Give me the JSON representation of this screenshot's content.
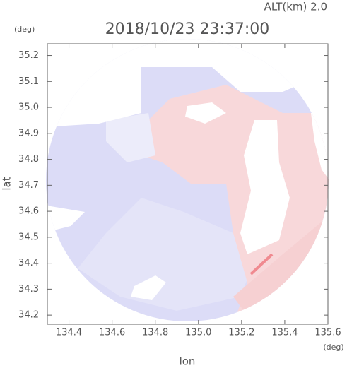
{
  "chart_data": {
    "type": "radar-map",
    "title": "2018/10/23 23:37:00",
    "annotation": "ALT(km) 2.0",
    "xlabel": "lon",
    "ylabel": "lat",
    "xunit": "(deg)",
    "yunit": "(deg)",
    "xlim": [
      134.3,
      135.6
    ],
    "ylim": [
      34.165,
      35.245
    ],
    "xticks": [
      134.4,
      134.6,
      134.8,
      {
        "value": 135,
        "label": "135.0"
      },
      135.2,
      135.4,
      135.6
    ],
    "yticks": [
      34.2,
      34.3,
      34.4,
      34.5,
      34.6,
      34.7,
      34.8,
      34.9,
      {
        "value": 35,
        "label": "35.0"
      },
      35.1,
      35.2
    ]
  }
}
